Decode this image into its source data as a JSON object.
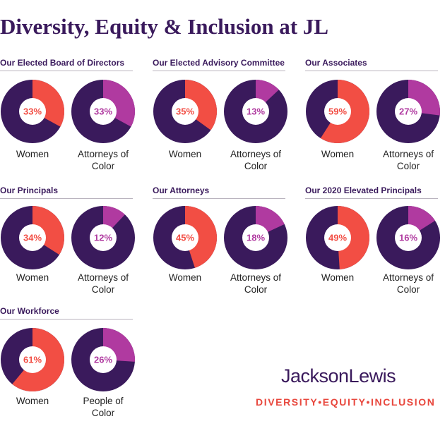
{
  "title": "Diversity, Equity & Inclusion at JL",
  "colors": {
    "women": "#f24e44",
    "color": "#b03aa0",
    "rest": "#3a1a5c",
    "center": "#ffffff"
  },
  "brand": {
    "name": "JacksonLewis",
    "tagline": "DIVERSITY•EQUITY•INCLUSION"
  },
  "chart_data": [
    {
      "type": "pie",
      "title": "Our Elected Board of Directors",
      "slices": [
        {
          "label": "Women",
          "value": 33,
          "display": "33%"
        },
        {
          "label": "Attorneys of Color",
          "value": 33,
          "display": "33%"
        }
      ]
    },
    {
      "type": "pie",
      "title": "Our Elected Advisory Committee",
      "slices": [
        {
          "label": "Women",
          "value": 35,
          "display": "35%"
        },
        {
          "label": "Attorneys of Color",
          "value": 13,
          "display": "13%"
        }
      ]
    },
    {
      "type": "pie",
      "title": "Our Associates",
      "slices": [
        {
          "label": "Women",
          "value": 59,
          "display": "59%"
        },
        {
          "label": "Attorneys of Color",
          "value": 27,
          "display": "27%"
        }
      ]
    },
    {
      "type": "pie",
      "title": "Our Principals",
      "slices": [
        {
          "label": "Women",
          "value": 34,
          "display": "34%"
        },
        {
          "label": "Attorneys of Color",
          "value": 12,
          "display": "12%"
        }
      ]
    },
    {
      "type": "pie",
      "title": "Our Attorneys",
      "slices": [
        {
          "label": "Women",
          "value": 45,
          "display": "45%"
        },
        {
          "label": "Attorneys of Color",
          "value": 18,
          "display": "18%"
        }
      ]
    },
    {
      "type": "pie",
      "title": "Our 2020 Elevated Principals",
      "slices": [
        {
          "label": "Women",
          "value": 49,
          "display": "49%"
        },
        {
          "label": "Attorneys of Color",
          "value": 16,
          "display": "16%"
        }
      ]
    },
    {
      "type": "pie",
      "title": "Our Workforce",
      "slices": [
        {
          "label": "Women",
          "value": 61,
          "display": "61%"
        },
        {
          "label": "People of Color",
          "value": 26,
          "display": "26%"
        }
      ]
    }
  ]
}
